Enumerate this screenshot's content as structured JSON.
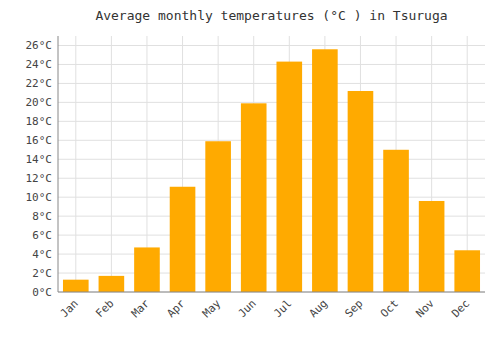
{
  "chart_data": {
    "type": "bar",
    "title": "Average monthly temperatures (°C ) in Tsuruga",
    "categories": [
      "Jan",
      "Feb",
      "Mar",
      "Apr",
      "May",
      "Jun",
      "Jul",
      "Aug",
      "Sep",
      "Oct",
      "Nov",
      "Dec"
    ],
    "values": [
      1.3,
      1.7,
      4.7,
      11.1,
      15.9,
      19.9,
      24.3,
      25.6,
      21.2,
      15.0,
      9.6,
      4.4
    ],
    "color": "#FFAA00",
    "ylim": [
      0,
      27
    ],
    "yticks": [
      {
        "value": 0,
        "label": "0°C"
      },
      {
        "value": 2,
        "label": "2°C"
      },
      {
        "value": 4,
        "label": "4°C"
      },
      {
        "value": 6,
        "label": "6°C"
      },
      {
        "value": 8,
        "label": "8°C"
      },
      {
        "value": 10,
        "label": "10°C"
      },
      {
        "value": 12,
        "label": "12°C"
      },
      {
        "value": 14,
        "label": "14°C"
      },
      {
        "value": 16,
        "label": "16°C"
      },
      {
        "value": 18,
        "label": "18°C"
      },
      {
        "value": 20,
        "label": "20°C"
      },
      {
        "value": 22,
        "label": "22°C"
      },
      {
        "value": 24,
        "label": "24°C"
      },
      {
        "value": 26,
        "label": "26°C"
      }
    ],
    "grid": true
  }
}
